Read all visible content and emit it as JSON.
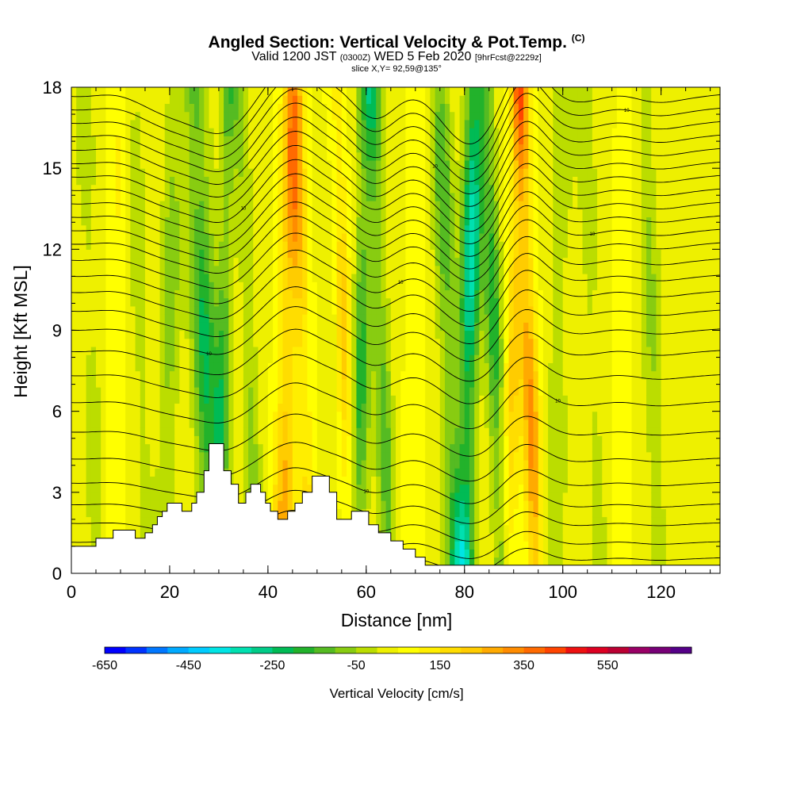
{
  "header": {
    "title_main": "Angled Section: Vertical Velocity & Pot.Temp.",
    "title_mark": "(C)",
    "valid_a": "Valid 1200 JST",
    "valid_z": "(0300Z)",
    "valid_b": "WED 5 Feb 2020",
    "valid_fcst": "[9hrFcst@2229z]",
    "slice": "slice X,Y= 92,59@135°"
  },
  "chart_data": {
    "type": "heatmap",
    "xlabel": "Distance [nm]",
    "ylabel": "Height [Kft MSL]",
    "xlim": [
      0,
      132
    ],
    "ylim": [
      0,
      18
    ],
    "x_ticks": [
      "0",
      "20",
      "40",
      "60",
      "80",
      "100",
      "120"
    ],
    "y_ticks": [
      "0",
      "3",
      "6",
      "9",
      "12",
      "15",
      "18"
    ],
    "colorbar": {
      "title": "Vertical Velocity [cm/s]",
      "tick_labels": [
        "-650",
        "-450",
        "-250",
        "-50",
        "150",
        "350",
        "550"
      ],
      "colors": [
        "#0000ff",
        "#0033ff",
        "#0077ff",
        "#00aaff",
        "#00ccff",
        "#00e5e5",
        "#00e0b0",
        "#00cc88",
        "#00bb55",
        "#22b22b",
        "#55bb22",
        "#88cc11",
        "#bbdd00",
        "#eef000",
        "#ffff00",
        "#ffee00",
        "#ffdd00",
        "#ffcc00",
        "#ffaa00",
        "#ff8c00",
        "#ff6a00",
        "#ff4400",
        "#ee1111",
        "#dd0022",
        "#bb0033",
        "#990066",
        "#770077",
        "#550088"
      ]
    },
    "velocity_columns": [
      {
        "x": 4,
        "w": 3.5,
        "v": -70
      },
      {
        "x": 9,
        "w": 3,
        "v": 70
      },
      {
        "x": 14,
        "w": 3,
        "v": -80
      },
      {
        "x": 20,
        "w": 3,
        "v": -130
      },
      {
        "x": 27,
        "w": 3.5,
        "v": -260
      },
      {
        "x": 31,
        "w": 2.5,
        "v": -200
      },
      {
        "x": 36,
        "w": 2.5,
        "v": -110
      },
      {
        "x": 44,
        "w": 3,
        "v": 240
      },
      {
        "x": 47,
        "w": 2.5,
        "v": 160
      },
      {
        "x": 53,
        "w": 2.5,
        "v": -60
      },
      {
        "x": 55.5,
        "w": 2.5,
        "v": 200
      },
      {
        "x": 59,
        "w": 2.8,
        "v": -230
      },
      {
        "x": 63,
        "w": 2.5,
        "v": -180
      },
      {
        "x": 70,
        "w": 3,
        "v": 60
      },
      {
        "x": 76.5,
        "w": 3,
        "v": -190
      },
      {
        "x": 81,
        "w": 2.8,
        "v": -380
      },
      {
        "x": 86,
        "w": 2.5,
        "v": -230
      },
      {
        "x": 90,
        "w": 2.5,
        "v": 180
      },
      {
        "x": 93,
        "w": 2.5,
        "v": 290
      },
      {
        "x": 99,
        "w": 3.5,
        "v": -90
      },
      {
        "x": 106,
        "w": 3,
        "v": -70
      },
      {
        "x": 112,
        "w": 3,
        "v": 50
      },
      {
        "x": 118,
        "w": 3,
        "v": -110
      },
      {
        "x": 126,
        "w": 3.5,
        "v": -40
      }
    ],
    "terrain": [
      [
        0,
        1.0
      ],
      [
        5,
        1.0
      ],
      [
        5,
        1.3
      ],
      [
        8.5,
        1.3
      ],
      [
        8.5,
        1.6
      ],
      [
        13,
        1.6
      ],
      [
        13,
        1.3
      ],
      [
        15,
        1.3
      ],
      [
        15,
        1.5
      ],
      [
        16.5,
        1.5
      ],
      [
        16.5,
        1.8
      ],
      [
        17.5,
        1.8
      ],
      [
        17.5,
        2.1
      ],
      [
        18.5,
        2.1
      ],
      [
        18.5,
        2.3
      ],
      [
        19.5,
        2.3
      ],
      [
        19.5,
        2.6
      ],
      [
        22.5,
        2.6
      ],
      [
        22.5,
        2.3
      ],
      [
        24.5,
        2.3
      ],
      [
        24.5,
        2.6
      ],
      [
        25.5,
        2.6
      ],
      [
        25.5,
        3.0
      ],
      [
        27,
        3.0
      ],
      [
        27,
        3.8
      ],
      [
        28,
        3.8
      ],
      [
        28,
        4.8
      ],
      [
        31,
        4.8
      ],
      [
        31,
        3.8
      ],
      [
        32.5,
        3.8
      ],
      [
        32.5,
        3.3
      ],
      [
        34,
        3.3
      ],
      [
        34,
        2.6
      ],
      [
        35.5,
        2.6
      ],
      [
        35.5,
        3.0
      ],
      [
        36.5,
        3.0
      ],
      [
        36.5,
        3.3
      ],
      [
        38.5,
        3.3
      ],
      [
        38.5,
        3.0
      ],
      [
        39.5,
        3.0
      ],
      [
        39.5,
        2.6
      ],
      [
        40.5,
        2.6
      ],
      [
        40.5,
        2.3
      ],
      [
        42,
        2.3
      ],
      [
        42,
        2.0
      ],
      [
        44,
        2.0
      ],
      [
        44,
        2.3
      ],
      [
        45.5,
        2.3
      ],
      [
        45.5,
        2.6
      ],
      [
        47,
        2.6
      ],
      [
        47,
        3.0
      ],
      [
        49,
        3.0
      ],
      [
        49,
        3.6
      ],
      [
        52.5,
        3.6
      ],
      [
        52.5,
        3.0
      ],
      [
        54,
        3.0
      ],
      [
        54,
        2.0
      ],
      [
        57,
        2.0
      ],
      [
        57,
        2.3
      ],
      [
        60.5,
        2.3
      ],
      [
        60.5,
        1.8
      ],
      [
        62.5,
        1.8
      ],
      [
        62.5,
        1.5
      ],
      [
        65,
        1.5
      ],
      [
        65,
        1.2
      ],
      [
        67.5,
        1.2
      ],
      [
        67.5,
        0.9
      ],
      [
        70,
        0.9
      ],
      [
        70,
        0.6
      ],
      [
        72,
        0.6
      ],
      [
        72,
        0.3
      ],
      [
        132,
        0.3
      ]
    ],
    "isentropes": {
      "base_heights": [
        0.6,
        1.2,
        1.9,
        2.6,
        3.4,
        4.3,
        5.3,
        6.4,
        7.4,
        8.3,
        9.1,
        9.8,
        10.5,
        11.1,
        11.7,
        12.3,
        12.8,
        13.3,
        13.8,
        14.3,
        14.8,
        15.3,
        15.8,
        16.3,
        16.8,
        17.3,
        17.8
      ],
      "label_text": "10"
    }
  }
}
